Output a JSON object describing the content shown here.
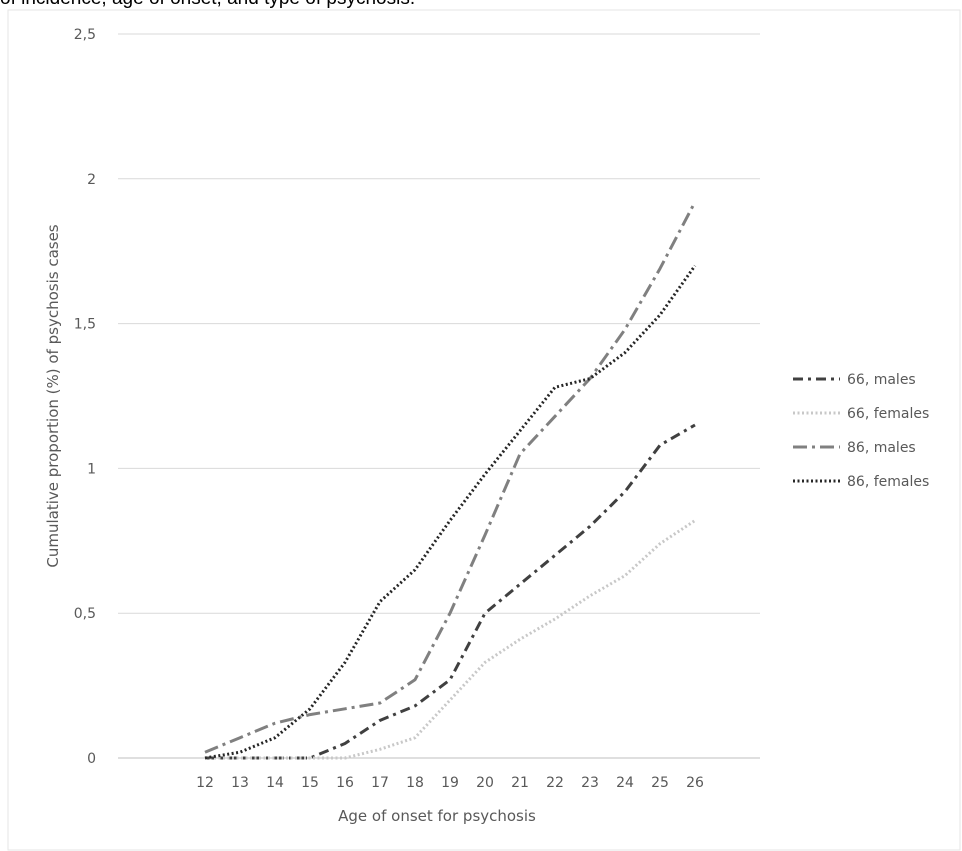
{
  "caption": "of incidence, age of onset, and type of psychosis.",
  "chart_data": {
    "type": "line",
    "title": "",
    "xlabel": "Age of onset for psychosis",
    "ylabel": "Cumulative proportion (%) of psychosis cases",
    "x": [
      12,
      13,
      14,
      15,
      16,
      17,
      18,
      19,
      20,
      21,
      22,
      23,
      24,
      25,
      26
    ],
    "y_ticks": [
      "0",
      "0,5",
      "1",
      "1,5",
      "2",
      "2,5"
    ],
    "ylim": [
      0,
      2.5
    ],
    "grid": true,
    "legend_position": "right",
    "series": [
      {
        "name": "66, males",
        "color": "#404040",
        "dash": "dashdot",
        "values": [
          0,
          0,
          0,
          0,
          0.05,
          0.13,
          0.18,
          0.27,
          0.5,
          0.6,
          0.7,
          0.8,
          0.92,
          1.08,
          1.15
        ]
      },
      {
        "name": "66, females",
        "color": "#c8c8c8",
        "dash": "dot",
        "values": [
          0,
          0,
          0,
          0,
          0,
          0.03,
          0.07,
          0.2,
          0.33,
          0.41,
          0.48,
          0.56,
          0.63,
          0.74,
          0.82
        ]
      },
      {
        "name": "86, males",
        "color": "#808080",
        "dash": "longdashdot",
        "values": [
          0.02,
          0.07,
          0.12,
          0.15,
          0.17,
          0.19,
          0.27,
          0.5,
          0.77,
          1.05,
          1.18,
          1.31,
          1.48,
          1.69,
          1.92
        ]
      },
      {
        "name": "86, females",
        "color": "#262626",
        "dash": "dot",
        "values": [
          0,
          0.02,
          0.07,
          0.17,
          0.33,
          0.54,
          0.65,
          0.82,
          0.98,
          1.13,
          1.28,
          1.31,
          1.4,
          1.53,
          1.7
        ]
      }
    ]
  }
}
